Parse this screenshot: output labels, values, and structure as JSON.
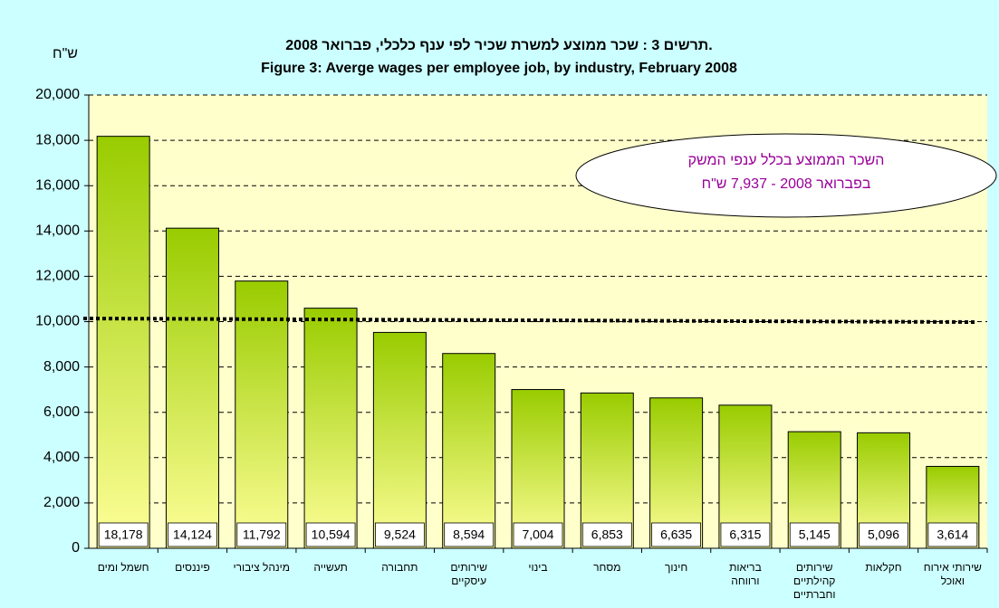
{
  "chart_data": {
    "type": "bar",
    "title": "תרשים 3 : שכר ממוצע למשרת שכיר לפי ענף כלכלי, פברואר 2008.",
    "subtitle": "Figure 3: Averge wages per employee job, by industry, February 2008",
    "y_axis_label": "ש\"ח",
    "annotation": [
      "השכר הממוצע בכלל ענפי המשק",
      "בפברואר 2008 -  7,937 ש\"ח"
    ],
    "categories": [
      "חשמל ומים",
      "פיננסים",
      "מינהל ציבורי",
      "תעשייה",
      "תחבורה",
      "שירותים עיסקיים",
      "בינוי",
      "מסחר",
      "חינוך",
      "בריאות ורווחה",
      "שירותים קהילתיים וחברתיים",
      "חקלאות",
      "שירותי אירוח ואוכל"
    ],
    "values": [
      18178,
      14124,
      11792,
      10594,
      9524,
      8594,
      7004,
      6853,
      6635,
      6315,
      5145,
      5096,
      3614
    ],
    "value_labels": [
      "18,178",
      "14,124",
      "11,792",
      "10,594",
      "9,524",
      "8,594",
      "7,004",
      "6,853",
      "6,635",
      "6,315",
      "5,145",
      "5,096",
      "3,614"
    ],
    "ylim": [
      0,
      20000
    ],
    "yticks": [
      0,
      {
        "value": 2000,
        "label": "2,000"
      },
      {
        "value": 4000,
        "label": "4,000"
      },
      {
        "value": 6000,
        "label": "6,000"
      },
      {
        "value": 8000,
        "label": "8,000"
      },
      {
        "value": 10000,
        "label": "10,000"
      },
      {
        "value": 12000,
        "label": "12,000"
      },
      {
        "value": 14000,
        "label": "14,000"
      },
      {
        "value": 16000,
        "label": "16,000"
      },
      {
        "value": 18000,
        "label": "18,000"
      },
      {
        "value": 20000,
        "label": "20,000"
      }
    ],
    "grid": true
  }
}
